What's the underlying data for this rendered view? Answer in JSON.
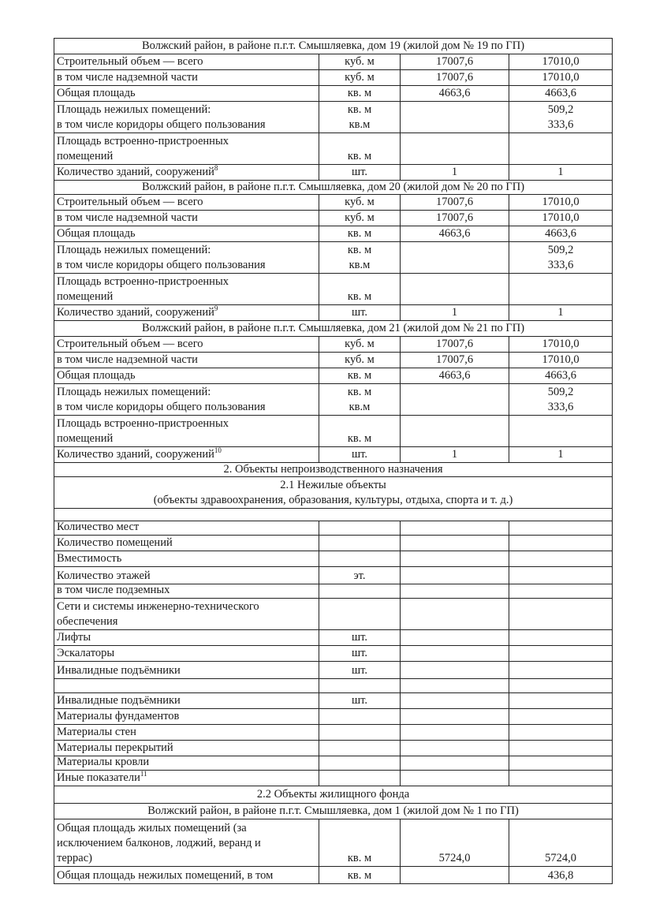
{
  "rows": [
    {
      "type": "header",
      "text": "Волжский район, в районе п.г.т. Смышляевка, дом 19 (жилой дом № 19 по ГП)"
    },
    {
      "type": "data",
      "cells": [
        [
          "Строительный объем — всего"
        ],
        [
          "куб. м"
        ],
        [
          "17007,6"
        ],
        [
          "17010,0"
        ]
      ]
    },
    {
      "type": "data",
      "cells": [
        [
          "в том числе надземной части"
        ],
        [
          "куб. м"
        ],
        [
          "17007,6"
        ],
        [
          "17010,0"
        ]
      ]
    },
    {
      "type": "data",
      "cells": [
        [
          "Общая площадь"
        ],
        [
          "кв. м"
        ],
        [
          "4663,6"
        ],
        [
          "4663,6"
        ]
      ]
    },
    {
      "type": "data",
      "cells": [
        [
          "Площадь нежилых помещений:",
          "в том числе коридоры общего пользования"
        ],
        [
          "кв. м",
          "кв.м"
        ],
        [
          "",
          ""
        ],
        [
          "509,2",
          "333,6"
        ]
      ]
    },
    {
      "type": "data",
      "cells": [
        [
          "Площадь встроенно-пристроенных",
          "помещений"
        ],
        [
          "",
          "кв. м"
        ],
        [
          ""
        ],
        [
          ""
        ]
      ]
    },
    {
      "type": "data",
      "cells": [
        [
          "Количество зданий, сооружений"
        ],
        [
          "шт."
        ],
        [
          "1"
        ],
        [
          "1"
        ]
      ],
      "sup": "8"
    },
    {
      "type": "header",
      "text": "Волжский район, в районе п.г.т. Смышляевка, дом 20 (жилой дом № 20 по ГП)"
    },
    {
      "type": "data",
      "cells": [
        [
          "Строительный объем — всего"
        ],
        [
          "куб. м"
        ],
        [
          "17007,6"
        ],
        [
          "17010,0"
        ]
      ]
    },
    {
      "type": "data",
      "cells": [
        [
          "в том числе надземной части"
        ],
        [
          "куб. м"
        ],
        [
          "17007,6"
        ],
        [
          "17010,0"
        ]
      ]
    },
    {
      "type": "data",
      "cells": [
        [
          "Общая площадь"
        ],
        [
          "кв. м"
        ],
        [
          "4663,6"
        ],
        [
          "4663,6"
        ]
      ]
    },
    {
      "type": "data",
      "cells": [
        [
          "Площадь нежилых помещений:",
          "в том числе коридоры общего пользования"
        ],
        [
          "кв. м",
          "кв.м"
        ],
        [
          "",
          ""
        ],
        [
          "509,2",
          "333,6"
        ]
      ]
    },
    {
      "type": "data",
      "cells": [
        [
          "Площадь встроенно-пристроенных",
          "помещений"
        ],
        [
          "",
          "кв. м"
        ],
        [
          ""
        ],
        [
          ""
        ]
      ]
    },
    {
      "type": "data",
      "cells": [
        [
          "Количество зданий, сооружений"
        ],
        [
          "шт."
        ],
        [
          "1"
        ],
        [
          "1"
        ]
      ],
      "sup": "9"
    },
    {
      "type": "header",
      "text": "Волжский район, в районе п.г.т. Смышляевка, дом 21 (жилой дом № 21 по ГП)"
    },
    {
      "type": "data",
      "cells": [
        [
          "Строительный объем — всего"
        ],
        [
          "куб. м"
        ],
        [
          "17007,6"
        ],
        [
          "17010,0"
        ]
      ]
    },
    {
      "type": "data",
      "cells": [
        [
          "в том числе надземной части"
        ],
        [
          "куб. м"
        ],
        [
          "17007,6"
        ],
        [
          "17010,0"
        ]
      ]
    },
    {
      "type": "data",
      "cells": [
        [
          "Общая площадь"
        ],
        [
          "кв. м"
        ],
        [
          "4663,6"
        ],
        [
          "4663,6"
        ]
      ]
    },
    {
      "type": "data",
      "cells": [
        [
          "Площадь нежилых помещений:",
          "в том числе коридоры общего пользования"
        ],
        [
          "кв. м",
          "кв.м"
        ],
        [
          "",
          ""
        ],
        [
          "509,2",
          "333,6"
        ]
      ]
    },
    {
      "type": "data",
      "cells": [
        [
          "Площадь встроенно-пристроенных",
          "помещений"
        ],
        [
          "",
          "кв. м"
        ],
        [
          ""
        ],
        [
          ""
        ]
      ]
    },
    {
      "type": "data",
      "cells": [
        [
          "Количество зданий, сооружений"
        ],
        [
          "шт."
        ],
        [
          "1"
        ],
        [
          "1"
        ]
      ],
      "sup": "10"
    },
    {
      "type": "header",
      "text": "2. Объекты непроизводственного назначения"
    },
    {
      "type": "header2",
      "lines": [
        "2.1 Нежилые объекты",
        "(объекты здравоохранения, образования, культуры, отдыха, спорта и т. д.)"
      ]
    },
    {
      "type": "blank"
    },
    {
      "type": "data",
      "cells": [
        [
          "Количество мест"
        ],
        [
          ""
        ],
        [
          ""
        ],
        [
          ""
        ]
      ]
    },
    {
      "type": "data",
      "cells": [
        [
          "Количество помещений"
        ],
        [
          ""
        ],
        [
          ""
        ],
        [
          ""
        ]
      ]
    },
    {
      "type": "data",
      "cells": [
        [
          "Вместимость"
        ],
        [
          ""
        ],
        [
          ""
        ],
        [
          ""
        ]
      ]
    },
    {
      "type": "data",
      "cells": [
        [
          "Количество этажей"
        ],
        [
          "эт."
        ],
        [
          ""
        ],
        [
          ""
        ]
      ]
    },
    {
      "type": "data",
      "cells": [
        [
          "в том числе подземных"
        ],
        [
          ""
        ],
        [
          ""
        ],
        [
          ""
        ]
      ]
    },
    {
      "type": "data",
      "cells": [
        [
          "Сети и системы инженерно-технического",
          "обеспечения"
        ],
        [
          ""
        ],
        [
          ""
        ],
        [
          ""
        ]
      ]
    },
    {
      "type": "data",
      "cells": [
        [
          "Лифты"
        ],
        [
          "шт."
        ],
        [
          ""
        ],
        [
          ""
        ]
      ]
    },
    {
      "type": "data",
      "cells": [
        [
          "Эскалаторы"
        ],
        [
          "шт."
        ],
        [
          ""
        ],
        [
          ""
        ]
      ]
    },
    {
      "type": "data",
      "cells": [
        [
          "Инвалидные подъёмники"
        ],
        [
          "шт."
        ],
        [
          ""
        ],
        [
          ""
        ]
      ]
    },
    {
      "type": "data",
      "cells": [
        [
          ""
        ],
        [
          ""
        ],
        [
          ""
        ],
        [
          ""
        ]
      ]
    },
    {
      "type": "data",
      "cells": [
        [
          "Инвалидные подъёмники"
        ],
        [
          "шт."
        ],
        [
          ""
        ],
        [
          ""
        ]
      ]
    },
    {
      "type": "data",
      "cells": [
        [
          "Материалы фундаментов"
        ],
        [
          ""
        ],
        [
          ""
        ],
        [
          ""
        ]
      ]
    },
    {
      "type": "data",
      "cells": [
        [
          "Материалы стен"
        ],
        [
          ""
        ],
        [
          ""
        ],
        [
          ""
        ]
      ]
    },
    {
      "type": "data",
      "cells": [
        [
          "Материалы перекрытий"
        ],
        [
          ""
        ],
        [
          ""
        ],
        [
          ""
        ]
      ]
    },
    {
      "type": "data",
      "cells": [
        [
          "Материалы кровли"
        ],
        [
          ""
        ],
        [
          ""
        ],
        [
          ""
        ]
      ]
    },
    {
      "type": "data",
      "cells": [
        [
          "Иные показатели"
        ],
        [
          ""
        ],
        [
          ""
        ],
        [
          ""
        ]
      ],
      "sup": "11"
    },
    {
      "type": "header",
      "text": "2.2 Объекты жилищного фонда"
    },
    {
      "type": "header",
      "text": "Волжский район, в районе п.г.т. Смышляевка, дом 1 (жилой дом № 1 по ГП)"
    },
    {
      "type": "data",
      "cells": [
        [
          "Общая площадь жилых помещений (за",
          "исключением балконов, лоджий, веранд и",
          "террас)"
        ],
        [
          "кв. м"
        ],
        [
          "5724,0"
        ],
        [
          "5724,0"
        ]
      ]
    },
    {
      "type": "data",
      "cells": [
        [
          "Общая площадь нежилых помещений, в том"
        ],
        [
          "кв. м"
        ],
        [
          ""
        ],
        [
          "436,8"
        ]
      ]
    }
  ]
}
